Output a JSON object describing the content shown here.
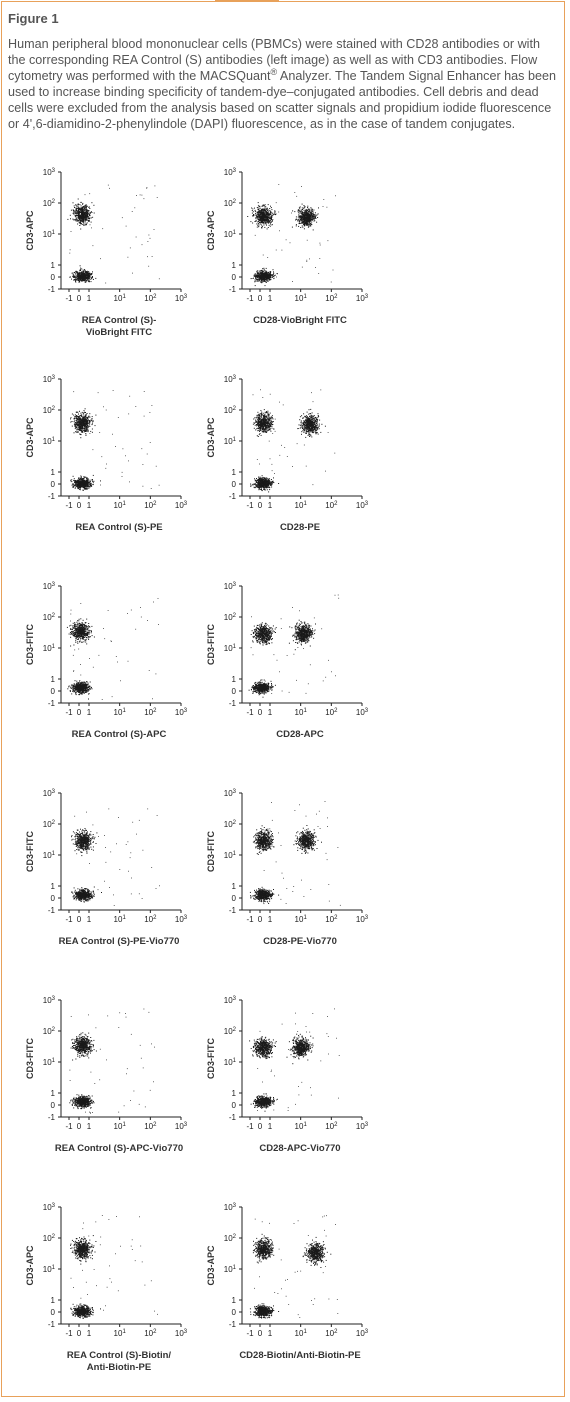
{
  "figure": {
    "title": "Figure 1",
    "caption_part1": "Human peripheral blood mononuclear cells (PBMCs) were stained with CD28 antibodies or with the corresponding REA Control (S) antibodies (left image) as well as with CD3 antibodies. Flow cytometry was performed with the MACSQuant",
    "caption_reg": "®",
    "caption_part2": " Analyzer. The Tandem Signal Enhancer has been used to increase binding specificity of tandem-dye–conjugated antibodies. Cell debris and dead cells were excluded from the analysis based on scatter signals and propidium iodide fluorescence or 4',6-diamidino-2-phenylindole (DAPI) fluorescence, as in the case of tandem conjugates."
  },
  "axis_ticks": {
    "x": [
      "-1",
      "0",
      "1",
      "10",
      "10",
      "10"
    ],
    "x_exp": [
      "",
      "",
      "",
      "1",
      "2",
      "3"
    ],
    "y": [
      "10",
      "10",
      "10",
      "1",
      "0",
      "-1"
    ],
    "y_exp": [
      "3",
      "2",
      "1",
      "",
      "",
      ""
    ]
  },
  "colors": {
    "dots": "#1a1a1a",
    "axis": "#222222",
    "frame": "#e8a15a"
  },
  "chart_data": [
    {
      "type": "scatter",
      "panel": "REA Control (S)-VioBright FITC",
      "xlabel": "REA Control (S)- VioBright FITC",
      "xlabel_lines": [
        "REA Control (S)-",
        "VioBright FITC"
      ],
      "ylabel": "CD3-APC",
      "populations": [
        {
          "x": 0.3,
          "y": 45,
          "density": "high"
        },
        {
          "x": 0.3,
          "y": 0.1,
          "density": "high"
        }
      ]
    },
    {
      "type": "scatter",
      "panel": "CD28-VioBright FITC",
      "xlabel": "CD28-VioBright FITC",
      "xlabel_lines": [
        "CD28-VioBright FITC"
      ],
      "ylabel": "CD3-APC",
      "populations": [
        {
          "x": 0.3,
          "y": 40,
          "density": "high"
        },
        {
          "x": 15,
          "y": 35,
          "density": "high"
        },
        {
          "x": 0.3,
          "y": 0.1,
          "density": "high"
        }
      ]
    },
    {
      "type": "scatter",
      "panel": "REA Control (S)-PE",
      "xlabel": "REA Control (S)-PE",
      "xlabel_lines": [
        "REA Control (S)-PE"
      ],
      "ylabel": "CD3-APC",
      "populations": [
        {
          "x": 0.3,
          "y": 40,
          "density": "high"
        },
        {
          "x": 0.3,
          "y": 0.1,
          "density": "high"
        }
      ]
    },
    {
      "type": "scatter",
      "panel": "CD28-PE",
      "xlabel": "CD28-PE",
      "xlabel_lines": [
        "CD28-PE"
      ],
      "ylabel": "CD3-APC",
      "populations": [
        {
          "x": 0.3,
          "y": 40,
          "density": "high"
        },
        {
          "x": 20,
          "y": 35,
          "density": "high"
        },
        {
          "x": 0.3,
          "y": 0.1,
          "density": "high"
        }
      ]
    },
    {
      "type": "scatter",
      "panel": "REA Control (S)-APC",
      "xlabel": "REA Control (S)-APC",
      "xlabel_lines": [
        "REA Control (S)-APC"
      ],
      "ylabel": "CD3-FITC",
      "populations": [
        {
          "x": 0.1,
          "y": 35,
          "density": "high"
        },
        {
          "x": 0.1,
          "y": 0.3,
          "density": "high"
        }
      ]
    },
    {
      "type": "scatter",
      "panel": "CD28-APC",
      "xlabel": "CD28-APC",
      "xlabel_lines": [
        "CD28-APC"
      ],
      "ylabel": "CD3-FITC",
      "populations": [
        {
          "x": 0.3,
          "y": 30,
          "density": "high"
        },
        {
          "x": 12,
          "y": 30,
          "density": "high"
        },
        {
          "x": 0.1,
          "y": 0.3,
          "density": "high"
        }
      ]
    },
    {
      "type": "scatter",
      "panel": "REA Control (S)-PE-Vio770",
      "xlabel": "REA Control (S)-PE-Vio770",
      "xlabel_lines": [
        "REA Control (S)-PE-Vio770"
      ],
      "ylabel": "CD3-FITC",
      "populations": [
        {
          "x": 0.4,
          "y": 30,
          "density": "high"
        },
        {
          "x": 0.4,
          "y": 0.3,
          "density": "high"
        }
      ]
    },
    {
      "type": "scatter",
      "panel": "CD28-PE-Vio770",
      "xlabel": "CD28-PE-Vio770",
      "xlabel_lines": [
        "CD28-PE-Vio770"
      ],
      "ylabel": "CD3-FITC",
      "populations": [
        {
          "x": 0.3,
          "y": 30,
          "density": "high"
        },
        {
          "x": 15,
          "y": 30,
          "density": "high"
        },
        {
          "x": 0.3,
          "y": 0.3,
          "density": "high"
        }
      ]
    },
    {
      "type": "scatter",
      "panel": "REA Control (S)-APC-Vio770",
      "xlabel": "REA Control (S)-APC-Vio770",
      "xlabel_lines": [
        "REA Control (S)-APC-Vio770"
      ],
      "ylabel": "CD3-FITC",
      "populations": [
        {
          "x": 0.3,
          "y": 35,
          "density": "high"
        },
        {
          "x": 0.3,
          "y": 0.3,
          "density": "high"
        }
      ]
    },
    {
      "type": "scatter",
      "panel": "CD28-APC-Vio770",
      "xlabel": "CD28-APC-Vio770",
      "xlabel_lines": [
        "CD28-APC-Vio770"
      ],
      "ylabel": "CD3-FITC",
      "populations": [
        {
          "x": 0.3,
          "y": 30,
          "density": "high"
        },
        {
          "x": 10,
          "y": 30,
          "density": "high"
        },
        {
          "x": 0.3,
          "y": 0.3,
          "density": "high"
        }
      ]
    },
    {
      "type": "scatter",
      "panel": "REA Control (S)-Biotin/ Anti-Biotin-PE",
      "xlabel": "REA Control (S)-Biotin/ Anti-Biotin-PE",
      "xlabel_lines": [
        "REA Control (S)-Biotin/",
        "Anti-Biotin-PE"
      ],
      "ylabel": "CD3-APC",
      "populations": [
        {
          "x": 0.3,
          "y": 45,
          "density": "high"
        },
        {
          "x": 0.3,
          "y": 0.1,
          "density": "high"
        }
      ]
    },
    {
      "type": "scatter",
      "panel": "CD28-Biotin/Anti-Biotin-PE",
      "xlabel": "CD28-Biotin/Anti-Biotin-PE",
      "xlabel_lines": [
        "CD28-Biotin/Anti-Biotin-PE"
      ],
      "ylabel": "CD3-APC",
      "populations": [
        {
          "x": 0.3,
          "y": 45,
          "density": "high"
        },
        {
          "x": 30,
          "y": 35,
          "density": "high"
        },
        {
          "x": 0.3,
          "y": 0.1,
          "density": "high"
        }
      ]
    }
  ]
}
